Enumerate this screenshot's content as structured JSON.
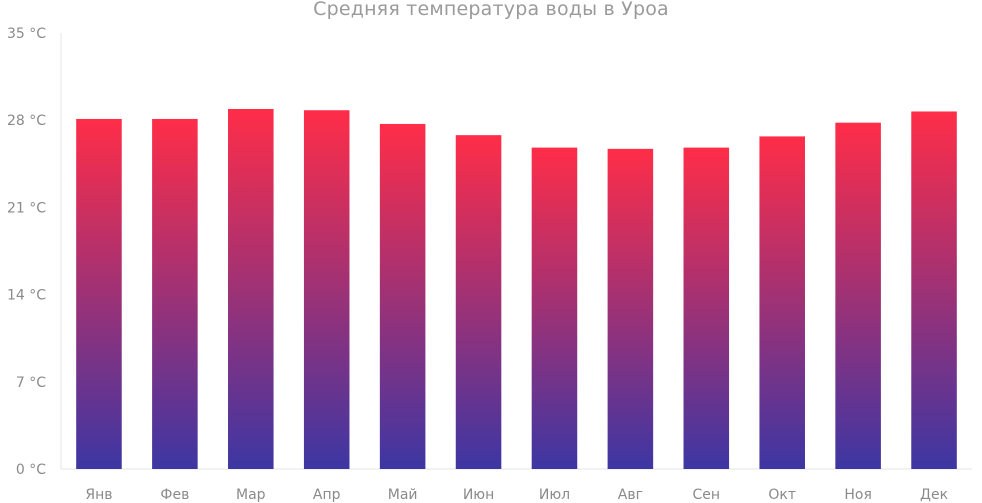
{
  "chart_data": {
    "type": "bar",
    "title": "Средняя температура воды в Уроа",
    "categories": [
      "Янв",
      "Фев",
      "Мар",
      "Апр",
      "Май",
      "Июн",
      "Июл",
      "Авг",
      "Сен",
      "Окт",
      "Ноя",
      "Дек"
    ],
    "values": [
      28.1,
      28.1,
      28.9,
      28.8,
      27.7,
      26.8,
      25.8,
      25.7,
      25.8,
      26.7,
      27.8,
      28.7
    ],
    "y_ticks": [
      "0 °C",
      "7 °C",
      "14 °C",
      "21 °C",
      "28 °C",
      "35 °C"
    ],
    "ylim": [
      0,
      35
    ],
    "xlabel": "",
    "ylabel": "",
    "grid": false,
    "colors": {
      "bar_top": "#ff2d48",
      "bar_bottom": "#3d36a3"
    }
  }
}
